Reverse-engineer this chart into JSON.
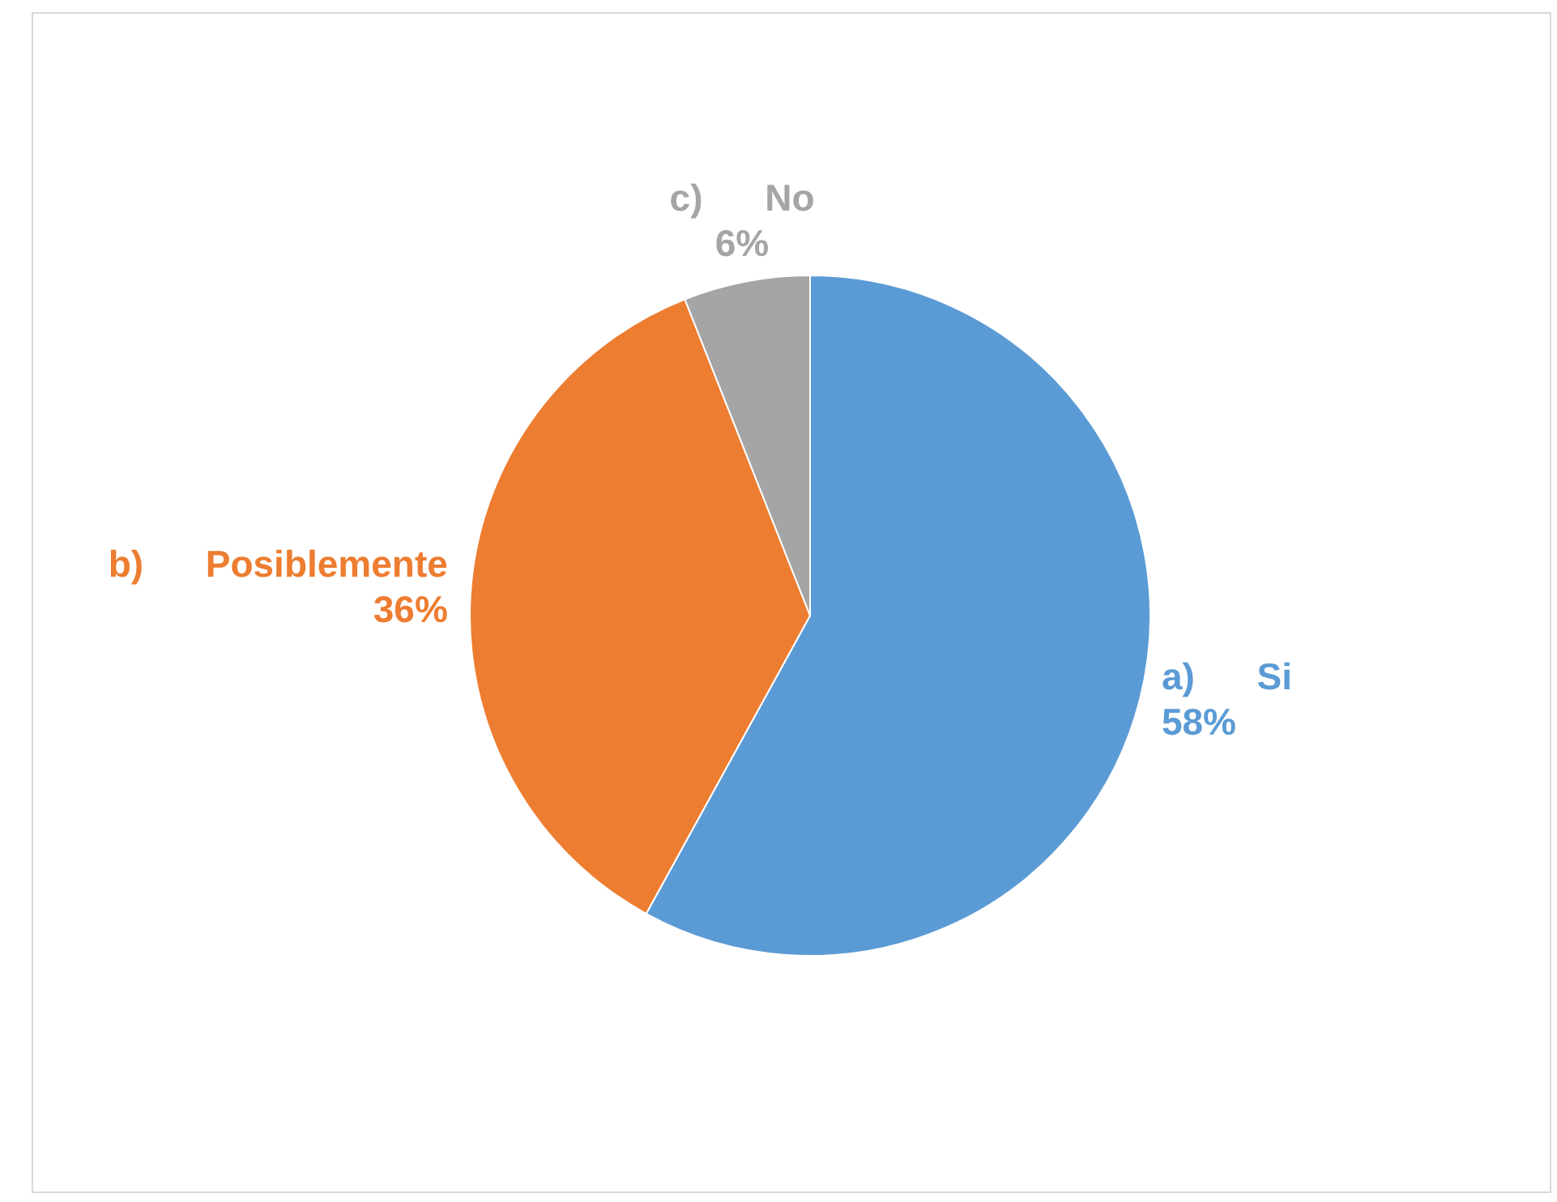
{
  "chart_data": {
    "type": "pie",
    "categories": [
      "a)      Si",
      "b)      Posiblemente",
      "c)      No"
    ],
    "values": [
      58,
      36,
      6
    ],
    "value_labels": [
      "58%",
      "36%",
      "6%"
    ],
    "colors": [
      "#5b9bd5",
      "#ed7d31",
      "#a5a5a5"
    ],
    "legend": false
  }
}
